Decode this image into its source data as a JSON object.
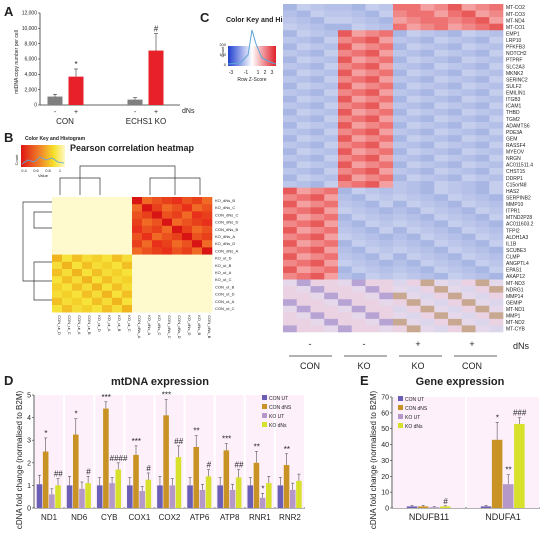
{
  "panels": {
    "A": "A",
    "B": "B",
    "C": "C",
    "D": "D",
    "E": "E"
  },
  "colors": {
    "gray": "#7f7f7f",
    "red": "#e8202a",
    "con_ut": "#6b5fb5",
    "con_dns": "#c89224",
    "ko_ut": "#b598c8",
    "ko_dns": "#d7e02a"
  },
  "chart_data": [
    {
      "id": "A",
      "type": "bar",
      "ylabel": "mtDNA copy number per cell",
      "ylim": [
        0,
        12000
      ],
      "yticks": [
        "0",
        "2,000",
        "4,000",
        "6,000",
        "8,000",
        "10,000",
        "12,000"
      ],
      "groups": [
        "CON",
        "ECHS1 KO"
      ],
      "treatment_labels": [
        "-",
        "+",
        "-",
        "+"
      ],
      "treatment_axis": "dNs",
      "values": [
        1100,
        3700,
        700,
        7100
      ],
      "errors": [
        300,
        1000,
        250,
        2200
      ],
      "annotations": [
        "",
        "*",
        "",
        "#"
      ]
    },
    {
      "id": "B",
      "type": "heatmap",
      "title": "Pearson correlation heatmap",
      "key_title": "Color Key and Histogram",
      "key_ylabel": "Count",
      "key_xlabel": "Value",
      "key_ticks": [
        "0.4",
        "0.6",
        "0.8",
        "1"
      ],
      "labels": [
        "CON_ut_D",
        "CON_ut_C",
        "CON_ut_A",
        "CON_ut_B",
        "KO_ut_D",
        "KO_ut_A",
        "KO_ut_B",
        "KO_ut_C",
        "CON_dNs_A",
        "KO_dNs_A",
        "KO_dNs_C",
        "CON_dNs_C",
        "CON_dNs_D",
        "KO_dNs_D",
        "KO_dNs_B",
        "CON_dNs_B"
      ],
      "row_labels": [
        "KO_dNs_B",
        "KO_dNs_C",
        "CON_dNs_C",
        "CON_dNs_D",
        "CON_dNs_B",
        "KO_dNs_A",
        "KO_dNs_D",
        "CON_dNs_A",
        "KO_ut_D",
        "KO_ut_B",
        "KO_ut_A",
        "KO_ut_C",
        "CON_ut_B",
        "CON_ut_D",
        "CON_ut_A",
        "CON_ut_C"
      ]
    },
    {
      "id": "C",
      "type": "heatmap",
      "key_title": "Color Key and Histogram",
      "key_ylabel": "Count",
      "key_xlabel": "Row Z-Score",
      "key_ticks": [
        "-3",
        "-1",
        "1",
        "2",
        "3"
      ],
      "key_yticks": [
        "0",
        "100",
        "200"
      ],
      "genes": [
        "MT-CO2",
        "MT-CO3",
        "MT-ND4",
        "MT-CO1",
        "EMP1",
        "LRP10",
        "PFKFB3",
        "NOTCH2",
        "PTPRF",
        "SLC2A3",
        "MKNK2",
        "SERINC2",
        "SULF2",
        "EMILIN1",
        "ITGB3",
        "ICAM1",
        "THBD",
        "TGM2",
        "ADAMTS6",
        "PDE3A",
        "GEM",
        "RASSF4",
        "MYEOV",
        "NRGN",
        "AC011511.4",
        "CHST15",
        "DDRP1",
        "C15orf48",
        "HAS2",
        "SERPINB2",
        "MMP10",
        "ITPR1",
        "MTND2P28",
        "AC011603.2",
        "TFPI2",
        "ALDH1A3",
        "IL1B",
        "SCUBE3",
        "CLMP",
        "ANGPTL4",
        "EPAS1",
        "AKAP12",
        "MT-ND3",
        "NDRG1",
        "MMP14",
        "GEMIP",
        "MT-ND1",
        "MMP1",
        "MT-ND2",
        "MT-CYB"
      ],
      "group_labels": [
        "CON",
        "KO",
        "KO",
        "CON"
      ],
      "treatment_labels": [
        "-",
        "-",
        "+",
        "+"
      ],
      "treatment_axis": "dNs"
    },
    {
      "id": "D",
      "type": "bar",
      "title": "mtDNA expression",
      "ylabel": "cDNA fold change (normalised to B2M)",
      "ylim": [
        0,
        5
      ],
      "yticks": [
        "0",
        "1",
        "2",
        "3",
        "4",
        "5"
      ],
      "categories": [
        "ND1",
        "ND6",
        "CYB",
        "COX1",
        "COX2",
        "ATP6",
        "ATP8",
        "RNR1",
        "RNR2"
      ],
      "series": [
        {
          "name": "CON UT",
          "values": [
            1.05,
            1.0,
            1.0,
            1.0,
            1.0,
            1.0,
            1.0,
            1.0,
            1.0
          ],
          "errors": [
            0.4,
            0.4,
            0.35,
            0.35,
            0.4,
            0.35,
            0.35,
            0.35,
            0.35
          ]
        },
        {
          "name": "CON dNS",
          "values": [
            2.5,
            3.25,
            4.4,
            2.35,
            4.1,
            2.7,
            2.55,
            2.0,
            1.9
          ],
          "errors": [
            0.6,
            0.7,
            0.3,
            0.4,
            0.7,
            0.5,
            0.3,
            0.5,
            0.5
          ]
        },
        {
          "name": "KO UT",
          "values": [
            0.6,
            0.85,
            1.1,
            0.75,
            1.0,
            0.8,
            0.8,
            0.45,
            0.8
          ],
          "errors": [
            0.25,
            0.3,
            0.25,
            0.2,
            0.3,
            0.25,
            0.25,
            0.2,
            0.3
          ]
        },
        {
          "name": "KO dNs",
          "values": [
            1.0,
            1.1,
            1.7,
            1.25,
            2.25,
            1.4,
            1.35,
            1.1,
            1.2
          ],
          "errors": [
            0.3,
            0.3,
            0.3,
            0.3,
            0.5,
            0.3,
            0.35,
            0.3,
            0.3
          ]
        }
      ],
      "annotations": [
        {
          "category": "ND1",
          "series": 1,
          "text": "*"
        },
        {
          "category": "ND1",
          "series": 3,
          "text": "##"
        },
        {
          "category": "ND6",
          "series": 1,
          "text": "*"
        },
        {
          "category": "ND6",
          "series": 3,
          "text": "#"
        },
        {
          "category": "CYB",
          "series": 1,
          "text": "***"
        },
        {
          "category": "CYB",
          "series": 3,
          "text": "####"
        },
        {
          "category": "COX1",
          "series": 1,
          "text": "***"
        },
        {
          "category": "COX1",
          "series": 3,
          "text": "#"
        },
        {
          "category": "COX2",
          "series": 1,
          "text": "***"
        },
        {
          "category": "COX2",
          "series": 3,
          "text": "##"
        },
        {
          "category": "ATP6",
          "series": 1,
          "text": "**"
        },
        {
          "category": "ATP6",
          "series": 3,
          "text": "#"
        },
        {
          "category": "ATP8",
          "series": 1,
          "text": "***"
        },
        {
          "category": "ATP8",
          "series": 3,
          "text": "##"
        },
        {
          "category": "RNR1",
          "series": 1,
          "text": "**"
        },
        {
          "category": "RNR1",
          "series": 2,
          "text": "*"
        },
        {
          "category": "RNR2",
          "series": 1,
          "text": "**"
        }
      ]
    },
    {
      "id": "E",
      "type": "bar",
      "title": "Gene expression",
      "ylabel": "cDNA fold change (normalised to B2M)",
      "ylim": [
        0,
        70
      ],
      "yticks": [
        "0",
        "10",
        "20",
        "30",
        "40",
        "50",
        "60",
        "70"
      ],
      "categories": [
        "NDUFB11",
        "NDUFA1"
      ],
      "series": [
        {
          "name": "CON UT",
          "values": [
            1.0,
            1.0
          ],
          "errors": [
            0.5,
            0.6
          ]
        },
        {
          "name": "CON dNS",
          "values": [
            1.0,
            43
          ],
          "errors": [
            0.6,
            11
          ]
        },
        {
          "name": "KO UT",
          "values": [
            0.5,
            15
          ],
          "errors": [
            0.3,
            6
          ]
        },
        {
          "name": "KO dNs",
          "values": [
            1.0,
            53
          ],
          "errors": [
            0.4,
            4
          ]
        }
      ],
      "annotations": [
        {
          "category": "NDUFB11",
          "series": 3,
          "text": "#"
        },
        {
          "category": "NDUFA1",
          "series": 1,
          "text": "*"
        },
        {
          "category": "NDUFA1",
          "series": 2,
          "text": "**"
        },
        {
          "category": "NDUFA1",
          "series": 3,
          "text": "###"
        }
      ]
    }
  ]
}
